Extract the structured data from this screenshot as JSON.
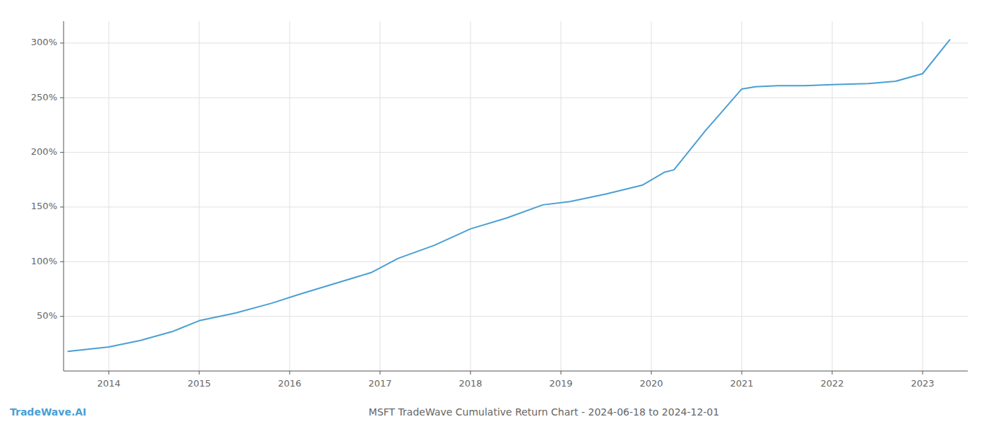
{
  "chart_data": {
    "type": "line",
    "title": "MSFT TradeWave Cumulative Return Chart - 2024-06-18 to 2024-12-01",
    "annotations": [
      "TradeWave.AI"
    ],
    "color": "#4a9fd4",
    "x": [
      2013.55,
      2014.0,
      2014.35,
      2014.7,
      2015.0,
      2015.4,
      2015.8,
      2016.1,
      2016.5,
      2016.9,
      2017.2,
      2017.6,
      2018.0,
      2018.4,
      2018.8,
      2019.1,
      2019.5,
      2019.9,
      2020.15,
      2020.25,
      2020.6,
      2021.0,
      2021.15,
      2021.4,
      2021.7,
      2022.0,
      2022.4,
      2022.7,
      2023.0,
      2023.3
    ],
    "values": [
      18,
      22,
      28,
      36,
      46,
      53,
      62,
      70,
      80,
      90,
      103,
      115,
      130,
      140,
      152,
      155,
      162,
      170,
      182,
      184,
      220,
      258,
      260,
      261,
      261,
      262,
      263,
      265,
      272,
      303
    ],
    "xlim": [
      2013.5,
      2023.5
    ],
    "xticks": [
      2014,
      2015,
      2016,
      2017,
      2018,
      2019,
      2020,
      2021,
      2022,
      2023
    ],
    "ylim": [
      0,
      320
    ],
    "yticks": [
      {
        "value": 50,
        "label": "50%"
      },
      {
        "value": 100,
        "label": "100%"
      },
      {
        "value": 150,
        "label": "150%"
      },
      {
        "value": 200,
        "label": "200%"
      },
      {
        "value": 250,
        "label": "250%"
      },
      {
        "value": 300,
        "label": "300%"
      }
    ],
    "grid": true
  }
}
